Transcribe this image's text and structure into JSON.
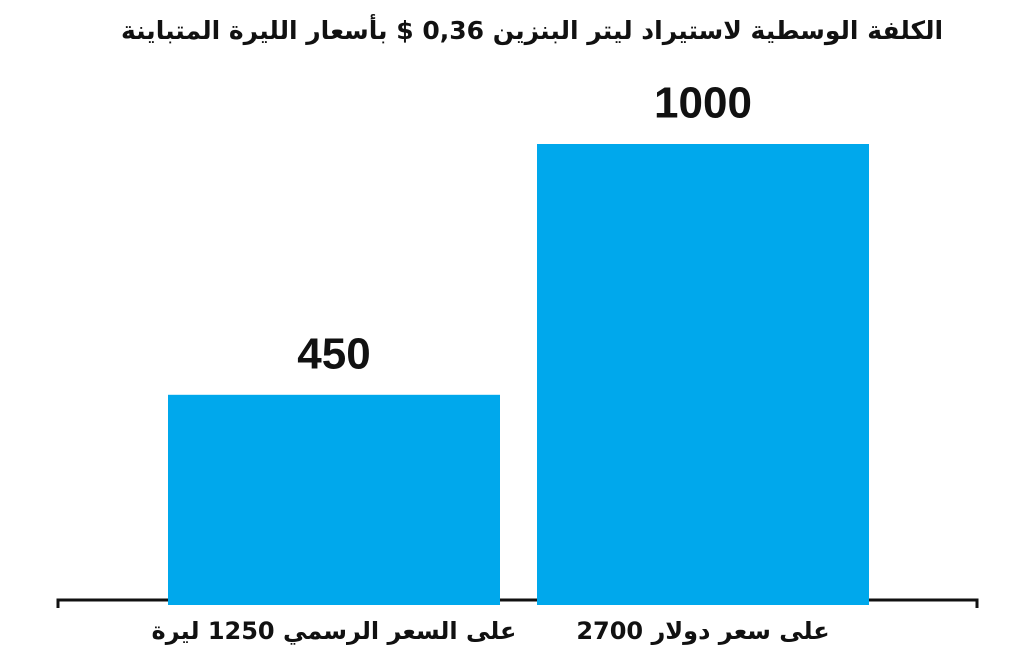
{
  "chart_data": {
    "type": "bar",
    "title": "الكلفة الوسطية لاستيراد ليتر البنزين 0,36 $ بأسعار الليرة المتباينة",
    "categories": [
      "على السعر الرسمي 1250 ليرة",
      "على سعر دولار 2700"
    ],
    "values": [
      450,
      1000
    ],
    "color": "#00a8ec"
  }
}
